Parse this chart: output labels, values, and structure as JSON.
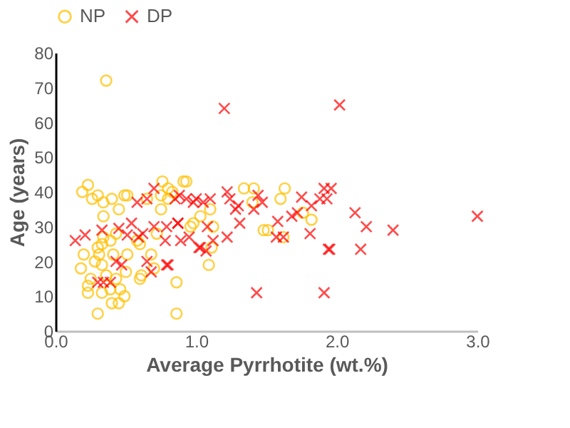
{
  "chart_data": {
    "type": "scatter",
    "xlabel": "Average Pyrrhotite (wt.%)",
    "ylabel": "Age (years)",
    "xlim": [
      0,
      3
    ],
    "xticks": [
      {
        "value": 0,
        "label": "0.0"
      },
      {
        "value": 1,
        "label": "1.0"
      },
      {
        "value": 2,
        "label": "2.0"
      },
      {
        "value": 3,
        "label": "3.0"
      }
    ],
    "ylim": [
      0,
      80
    ],
    "yticks": [
      0,
      10,
      20,
      30,
      40,
      50,
      60,
      70,
      80
    ],
    "grid": false,
    "legend": "top",
    "series": [
      {
        "name": "NP",
        "color": "#ffc000",
        "marker": "circle",
        "x": [
          0.36,
          0.19,
          0.23,
          0.26,
          0.3,
          0.34,
          0.4,
          0.34,
          0.45,
          0.49,
          0.51,
          0.65,
          0.75,
          0.76,
          0.91,
          0.83,
          0.75,
          0.2,
          0.18,
          0.23,
          0.23,
          0.25,
          0.3,
          0.31,
          0.33,
          0.36,
          0.33,
          0.4,
          0.45,
          0.39,
          0.46,
          0.49,
          0.43,
          0.5,
          0.51,
          0.3,
          0.41,
          0.39,
          0.43,
          0.33,
          0.6,
          0.61,
          0.68,
          0.7,
          0.6,
          0.72,
          0.86,
          0.86,
          0.98,
          0.28,
          0.34,
          0.58,
          0.93,
          0.8,
          0.8,
          1.34,
          1.41,
          1.4,
          1.63,
          1.6,
          1.1,
          1.03,
          0.96,
          1.12,
          1.48,
          1.51,
          1.62,
          1.76,
          1.82,
          1.11,
          1.09
        ],
        "values": [
          72,
          40,
          42,
          38,
          39,
          37,
          38,
          33,
          35,
          39,
          39,
          38,
          39,
          43,
          43,
          40,
          35,
          22,
          18,
          13,
          11,
          15,
          24,
          22,
          19,
          16,
          11,
          8,
          8,
          12,
          12,
          10,
          15,
          17,
          22,
          5,
          22,
          26,
          28,
          25,
          15,
          16,
          22,
          18,
          25,
          28,
          14,
          5,
          31,
          20,
          27,
          26,
          43,
          41,
          38,
          41,
          41,
          37,
          41,
          38,
          35,
          33,
          30,
          30,
          29,
          29,
          27,
          34,
          32,
          24,
          19
        ]
      },
      {
        "name": "DP",
        "color": "#ff0000",
        "marker": "cross",
        "x": [
          0.14,
          0.21,
          0.33,
          0.34,
          0.3,
          0.39,
          0.43,
          0.47,
          0.45,
          0.51,
          0.54,
          0.59,
          0.58,
          0.65,
          0.7,
          0.65,
          0.68,
          0.62,
          0.7,
          0.78,
          0.79,
          0.79,
          0.87,
          0.88,
          0.93,
          0.98,
          0.95,
          0.89,
          1.0,
          1.05,
          1.03,
          1.2,
          2.02,
          0.85,
          1.1,
          1.22,
          1.24,
          1.3,
          1.44,
          1.47,
          1.41,
          1.28,
          0.87,
          1.08,
          1.31,
          1.58,
          1.68,
          1.72,
          1.75,
          1.82,
          1.91,
          1.88,
          1.81,
          1.95,
          1.43,
          1.91,
          1.57,
          1.62,
          1.02,
          1.12,
          1.07,
          1.22,
          0.8,
          1.96,
          1.93,
          2.13,
          2.21,
          2.4,
          3.0,
          1.94,
          2.17
        ],
        "values": [
          26,
          27.6,
          29,
          14,
          14,
          14,
          20,
          19,
          29.5,
          27.6,
          31,
          27,
          37,
          38,
          41,
          20,
          17,
          28,
          30,
          26,
          19,
          30,
          31,
          39,
          38,
          37,
          27,
          26,
          38,
          37,
          24,
          64,
          65,
          38,
          38,
          40,
          38,
          36,
          39,
          37,
          35,
          35,
          31,
          30,
          31,
          31.5,
          33,
          34,
          38.5,
          36,
          41,
          38,
          28,
          23.5,
          11,
          11,
          27,
          27,
          24,
          26,
          23,
          27,
          19,
          41,
          38,
          34,
          30,
          29,
          33,
          23.5,
          23.5
        ]
      }
    ]
  }
}
